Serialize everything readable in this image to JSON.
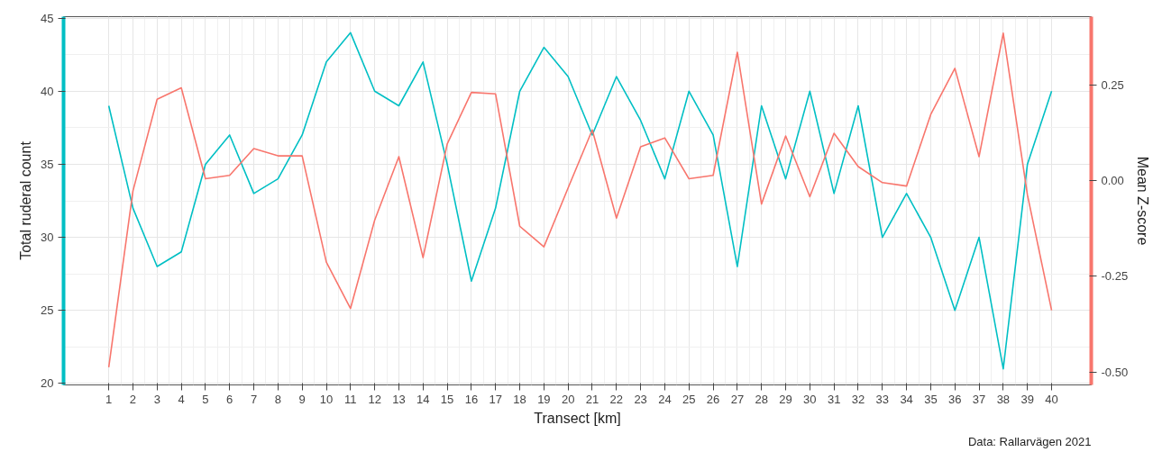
{
  "chart_data": {
    "type": "line",
    "xlabel": "Transect [km]",
    "ylabel": "Total ruderal count",
    "y2label": "Mean Z-score",
    "annotations": [
      "Data: Rallarvägen 2021"
    ],
    "x": [
      1,
      2,
      3,
      4,
      5,
      6,
      7,
      8,
      9,
      10,
      11,
      12,
      13,
      14,
      15,
      16,
      17,
      18,
      19,
      20,
      21,
      22,
      23,
      24,
      25,
      26,
      27,
      28,
      29,
      30,
      31,
      32,
      33,
      34,
      35,
      36,
      37,
      38,
      39,
      40
    ],
    "xlim": [
      -0.87,
      41.64
    ],
    "xticks": [
      1,
      2,
      3,
      4,
      5,
      6,
      7,
      8,
      9,
      10,
      11,
      12,
      13,
      14,
      15,
      16,
      17,
      18,
      19,
      20,
      21,
      22,
      23,
      24,
      25,
      26,
      27,
      28,
      29,
      30,
      31,
      32,
      33,
      34,
      35,
      36,
      37,
      38,
      39,
      40
    ],
    "ylim": [
      19.9,
      45.1
    ],
    "yticks": [
      20,
      25,
      30,
      35,
      40,
      45
    ],
    "y2lim": [
      -0.534,
      0.429
    ],
    "y2ticks": [
      {
        "value": -0.5,
        "label": "-0.50"
      },
      {
        "value": -0.25,
        "label": "-0.25"
      },
      {
        "value": 0,
        "label": "0.00"
      },
      {
        "value": 0.25,
        "label": "0.25"
      }
    ],
    "grid": true,
    "series": [
      {
        "color": "#00bfc4",
        "values": [
          39,
          32,
          28,
          29,
          35,
          37,
          33,
          34,
          37,
          42,
          44,
          40,
          39,
          42,
          35,
          27,
          32,
          40,
          43,
          41,
          37,
          41,
          38,
          34,
          40,
          37,
          28,
          39,
          34,
          40,
          33,
          39,
          30,
          33,
          30,
          25,
          30,
          21,
          35,
          40
        ]
      },
      {
        "color": "#f8766d",
        "axis": "y2",
        "values": [
          -0.488,
          -0.027,
          0.213,
          0.243,
          0.005,
          0.014,
          0.084,
          0.065,
          0.065,
          -0.213,
          -0.334,
          -0.103,
          0.063,
          -0.201,
          0.096,
          0.231,
          0.227,
          -0.119,
          -0.173,
          -0.019,
          0.133,
          -0.098,
          0.089,
          0.112,
          0.005,
          0.014,
          0.336,
          -0.061,
          0.117,
          -0.042,
          0.124,
          0.037,
          -0.005,
          -0.014,
          0.173,
          0.294,
          0.063,
          0.386,
          -0.037,
          -0.339
        ]
      }
    ]
  }
}
